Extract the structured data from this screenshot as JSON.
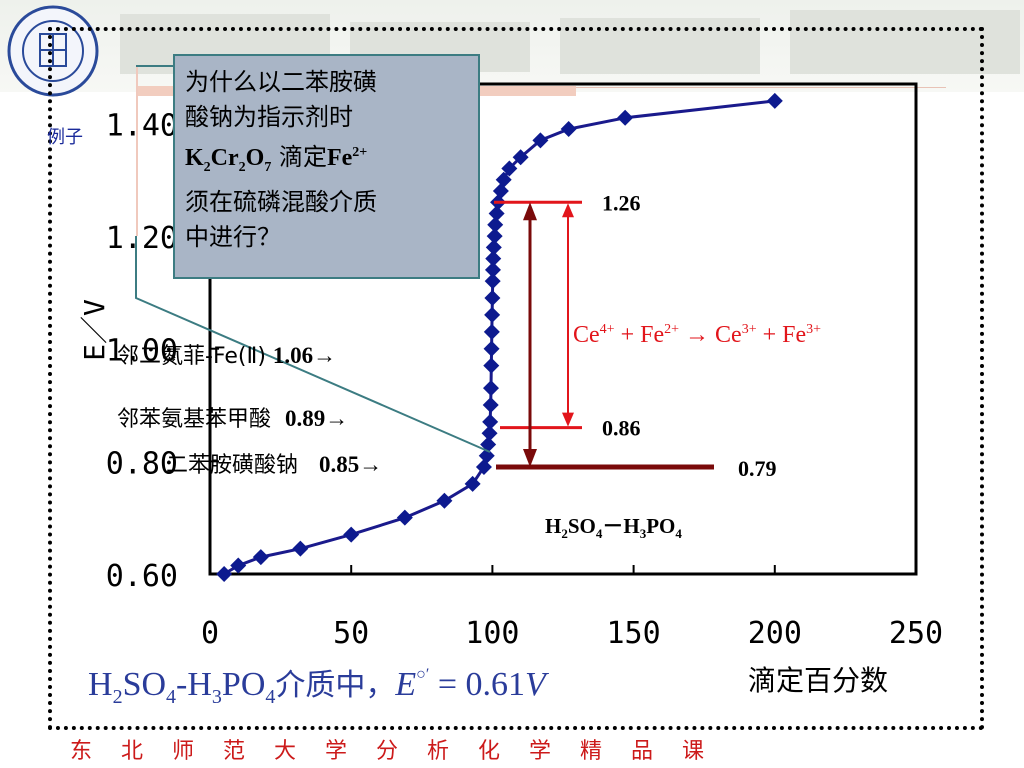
{
  "slide": {
    "example_label": "例子",
    "footer": "东北师范大学分析化学精品课"
  },
  "callout": {
    "line1": "为什么以二苯胺磺",
    "line2": "酸钠为指示剂时",
    "k": "K",
    "k_sub": "2",
    "cr": "Cr",
    "cr_sub": "2",
    "o": "O",
    "o_sub": "7",
    "titrate": " 滴定",
    "fe": "Fe",
    "fe_sup": "2+",
    "line4": "须在硫磷混酸介质",
    "line5": "中进行？"
  },
  "indicators": [
    {
      "name": "邻二氮菲-Fe(Ⅱ)",
      "value": "1.06→",
      "color": "#8b0000"
    },
    {
      "name": "邻苯氨基苯甲酸",
      "value": "0.89→",
      "color": "#8b0000"
    },
    {
      "name": "二苯胺磺酸钠",
      "value": "0.85→",
      "color": "#000000"
    }
  ],
  "reaction": {
    "ce1": "Ce",
    "ce1_sup": "4+",
    "plus1": " + ",
    "fe1": "Fe",
    "fe1_sup": "2+",
    "arrow": " → ",
    "ce2": "Ce",
    "ce2_sup": "3+",
    "plus2": " + ",
    "fe2": "Fe",
    "fe2_sup": "3+"
  },
  "medium": {
    "h": "H",
    "h_sub": "2",
    "so": "SO",
    "so_sub": "4",
    "dash": "－",
    "h2": "H",
    "h2_sub": "3",
    "po": "PO",
    "po_sub": "4"
  },
  "bottom_formula": {
    "h": "H",
    "h_sub": "2",
    "so": "SO",
    "so_sub": "4",
    "dash": "-",
    "h2": "H",
    "h2_sub": "3",
    "po": "PO",
    "po_sub": "4",
    "text": "介质中，",
    "e": "E",
    "prime": "○′",
    "value": " = 0.61",
    "unit": "V"
  },
  "colors": {
    "curve": "#1a1a8c",
    "marker": "#0d1a8f",
    "red_bar": "#e2151b",
    "dark_red": "#7a0a0a",
    "text_blue": "#2a3c9a",
    "footer_red": "#cc1a1a"
  },
  "chart_data": {
    "type": "line",
    "xlabel": "滴定百分数",
    "ylabel": "E／V",
    "xlim": [
      0,
      250
    ],
    "ylim": [
      0.6,
      1.47
    ],
    "x_ticks": [
      "0",
      "50",
      "100",
      "150",
      "200",
      "250"
    ],
    "y_ticks": [
      "0.60",
      "0.80",
      "1.00",
      "1.20",
      "1.40"
    ],
    "series": [
      {
        "x": [
          5,
          10,
          18,
          32,
          50,
          69,
          83,
          93,
          97,
          98,
          98.5,
          99,
          99.2,
          99.4,
          99.5,
          99.6,
          99.7,
          99.8,
          99.9,
          100,
          100.1,
          100.2,
          100.3,
          100.5,
          100.8,
          101,
          101.5,
          102,
          103,
          104,
          106,
          110,
          117,
          127,
          147,
          200
        ],
        "y": [
          0.6,
          0.615,
          0.63,
          0.645,
          0.67,
          0.7,
          0.73,
          0.76,
          0.79,
          0.81,
          0.83,
          0.85,
          0.87,
          0.9,
          0.93,
          0.97,
          1.0,
          1.03,
          1.06,
          1.09,
          1.12,
          1.14,
          1.16,
          1.18,
          1.2,
          1.22,
          1.24,
          1.26,
          1.28,
          1.3,
          1.32,
          1.34,
          1.37,
          1.39,
          1.41,
          1.44
        ]
      }
    ],
    "annotations": [
      {
        "text": "1.26",
        "y": 1.26
      },
      {
        "text": "0.86",
        "y": 0.86
      },
      {
        "text": "0.79",
        "y": 0.79
      }
    ]
  }
}
